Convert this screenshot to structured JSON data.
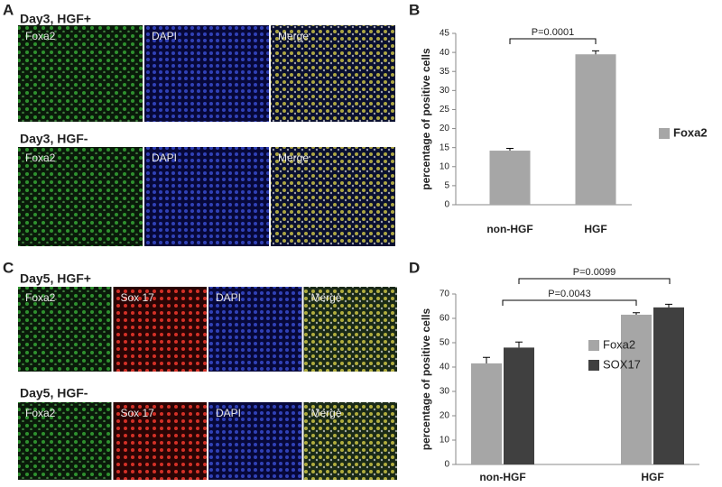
{
  "panels": [
    {
      "letter": "A",
      "rows": [
        {
          "title": "Day3, HGF+",
          "labels": [
            "Foxa2",
            "DAPI",
            "Merge"
          ]
        },
        {
          "title": "Day3, HGF-",
          "labels": [
            "Foxa2",
            "DAPI",
            "Merge"
          ]
        }
      ]
    },
    {
      "letter": "C",
      "rows": [
        {
          "title": "Day5, HGF+",
          "labels": [
            "Foxa2",
            "Sox 17",
            "DAPI",
            "Merge"
          ]
        },
        {
          "title": "Day5, HGF-",
          "labels": [
            "Foxa2",
            "Sox 17",
            "DAPI",
            "Merge"
          ]
        }
      ]
    }
  ],
  "chart_data": [
    {
      "type": "bar",
      "panel_label": "B",
      "ylabel": "percentage of positive cells",
      "categories": [
        "non-HGF",
        "HGF"
      ],
      "series": [
        {
          "name": "Foxa2",
          "color": "#a6a6a6",
          "values": [
            14.2,
            39.5
          ],
          "errors": [
            0.6,
            0.9
          ]
        }
      ],
      "ylim": [
        0,
        45
      ],
      "yticks": [
        0,
        5,
        10,
        15,
        20,
        25,
        30,
        35,
        40,
        45
      ],
      "annotations": [
        "P=0.0001"
      ]
    },
    {
      "type": "bar",
      "panel_label": "D",
      "ylabel": "percentage of positive cells",
      "categories": [
        "non-HGF",
        "HGF"
      ],
      "series": [
        {
          "name": "Foxa2",
          "color": "#a6a6a6",
          "values": [
            41.5,
            61.5
          ],
          "errors": [
            2.5,
            0.8
          ]
        },
        {
          "name": "SOX17",
          "color": "#404040",
          "values": [
            48,
            64.5
          ],
          "errors": [
            2.3,
            1.3
          ]
        }
      ],
      "ylim": [
        0,
        70
      ],
      "yticks": [
        0,
        10,
        20,
        30,
        40,
        50,
        60,
        70
      ],
      "annotations": [
        "P=0.0043",
        "P=0.0099"
      ]
    }
  ]
}
